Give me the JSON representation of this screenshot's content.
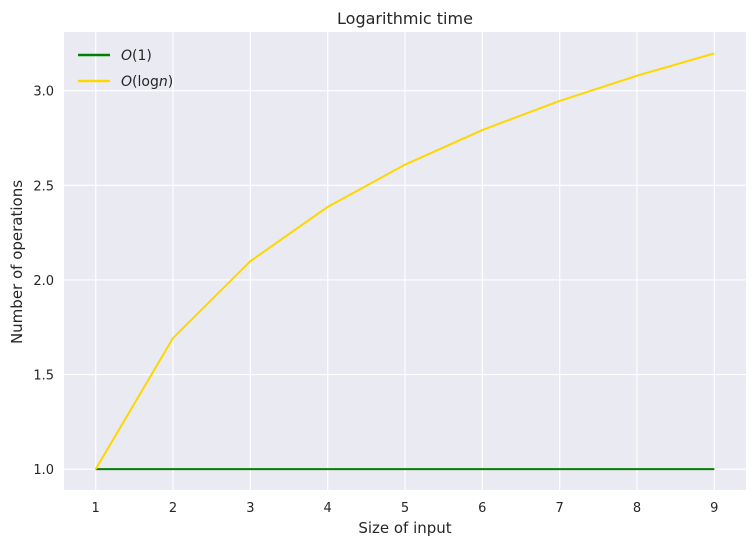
{
  "chart_data": {
    "type": "line",
    "title": "Logarithmic time",
    "xlabel": "Size of input",
    "ylabel": "Number of operations",
    "x": [
      1,
      2,
      3,
      4,
      5,
      6,
      7,
      8,
      9
    ],
    "xlim": [
      0.59,
      9.41
    ],
    "ylim": [
      0.89,
      3.31
    ],
    "xticks": [
      1,
      2,
      3,
      4,
      5,
      6,
      7,
      8,
      9
    ],
    "yticks": [
      1.0,
      1.5,
      2.0,
      2.5,
      3.0
    ],
    "ytick_labels": [
      "1.0",
      "1.5",
      "2.0",
      "2.5",
      "3.0"
    ],
    "grid": true,
    "legend_position": "top-left",
    "series": [
      {
        "name_parts": [
          "O",
          "(1)"
        ],
        "color": "#008000",
        "values": [
          1,
          1,
          1,
          1,
          1,
          1,
          1,
          1,
          1
        ]
      },
      {
        "name_parts": [
          "O",
          "(log",
          "n",
          ")"
        ],
        "color": "#FFD700",
        "values": [
          1.0,
          1.693,
          2.099,
          2.386,
          2.609,
          2.792,
          2.946,
          3.079,
          3.197
        ]
      }
    ],
    "background": "#EAEAF2",
    "gridColor": "#FFFFFF"
  }
}
